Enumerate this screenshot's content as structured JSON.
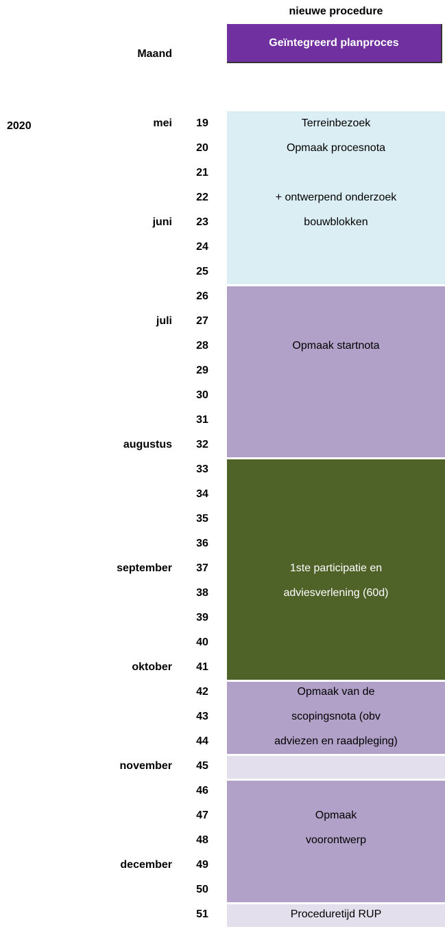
{
  "header": {
    "procedure": "nieuwe procedure",
    "plan_title": "Geïntegreerd planproces",
    "month_heading": "Maand"
  },
  "year": "2020",
  "rows": [
    {
      "week": "19",
      "month": "mei"
    },
    {
      "week": "20"
    },
    {
      "week": "21"
    },
    {
      "week": "22"
    },
    {
      "week": "23",
      "month": "juni"
    },
    {
      "week": "24"
    },
    {
      "week": "25"
    },
    {
      "week": "26"
    },
    {
      "week": "27",
      "month": "juli"
    },
    {
      "week": "28"
    },
    {
      "week": "29"
    },
    {
      "week": "30"
    },
    {
      "week": "31"
    },
    {
      "week": "32",
      "month": "augustus"
    },
    {
      "week": "33"
    },
    {
      "week": "34"
    },
    {
      "week": "35"
    },
    {
      "week": "36"
    },
    {
      "week": "37",
      "month": "september"
    },
    {
      "week": "38"
    },
    {
      "week": "39"
    },
    {
      "week": "40"
    },
    {
      "week": "41",
      "month": "oktober"
    },
    {
      "week": "42"
    },
    {
      "week": "43"
    },
    {
      "week": "44"
    },
    {
      "week": "45",
      "month": "november"
    },
    {
      "week": "46"
    },
    {
      "week": "47"
    },
    {
      "week": "48"
    },
    {
      "week": "49",
      "month": "december"
    },
    {
      "week": "50"
    },
    {
      "week": "51"
    }
  ],
  "blocks": [
    {
      "lines": [
        "Terreinbezoek",
        "Opmaak procesnota",
        "+ ontwerpend onderzoek",
        "bouwblokken"
      ]
    },
    {
      "lines": [
        "Opmaak startnota"
      ]
    },
    {
      "lines": [
        "1ste participatie en",
        "adviesverlening (60d)"
      ]
    },
    {
      "lines": [
        "Opmaak van de",
        "scopingsnota (obv",
        "adviezen en raadpleging)"
      ]
    },
    {
      "lines": []
    },
    {
      "lines": [
        "Opmaak",
        "voorontwerp"
      ]
    },
    {
      "lines": [
        "Proceduretijd RUP"
      ]
    }
  ]
}
